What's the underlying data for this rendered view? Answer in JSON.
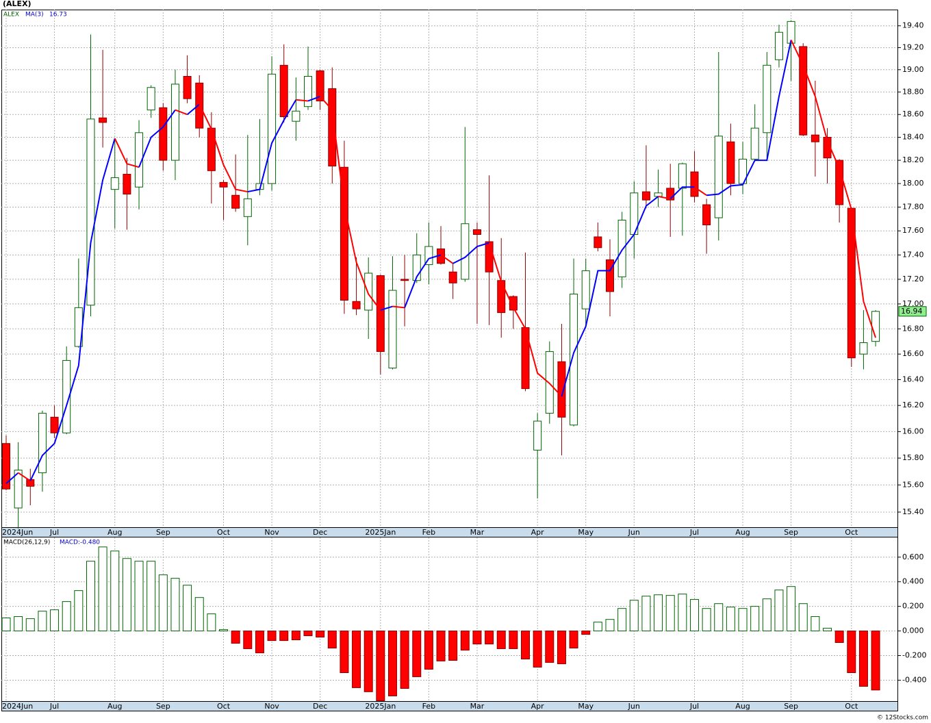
{
  "title": "(ALEX)",
  "chart_data": [
    {
      "type": "candlestick",
      "symbol": "ALEX",
      "categories": [
        "2024Jun",
        null,
        null,
        null,
        "Jul",
        null,
        null,
        null,
        null,
        "Aug",
        null,
        null,
        null,
        "Sep",
        null,
        null,
        null,
        null,
        "Oct",
        null,
        null,
        null,
        "Nov",
        null,
        null,
        null,
        "Dec",
        null,
        null,
        null,
        null,
        "2025Jan",
        null,
        null,
        null,
        "Feb",
        null,
        null,
        null,
        "Mar",
        null,
        null,
        null,
        null,
        "Apr",
        null,
        null,
        null,
        "May",
        null,
        null,
        null,
        "Jun",
        null,
        null,
        null,
        null,
        "Jul",
        null,
        null,
        null,
        "Aug",
        null,
        null,
        null,
        "Sep",
        null,
        null,
        null,
        null,
        "Oct",
        null,
        null
      ],
      "open": [
        15.91,
        15.43,
        15.64,
        15.69,
        16.11,
        15.99,
        16.66,
        16.99,
        18.57,
        17.95,
        18.08,
        17.97,
        18.64,
        18.66,
        18.2,
        18.94,
        18.88,
        18.48,
        18.01,
        17.9,
        17.72,
        17.95,
        18.0,
        19.04,
        18.54,
        18.67,
        18.99,
        18.83,
        18.14,
        17.02,
        16.95,
        17.23,
        16.49,
        17.2,
        17.19,
        17.32,
        17.45,
        17.26,
        17.2,
        17.61,
        17.51,
        17.19,
        17.06,
        16.81,
        15.86,
        16.14,
        16.54,
        16.05,
        16.96,
        17.55,
        17.36,
        17.22,
        17.57,
        17.93,
        17.89,
        17.96,
        17.96,
        18.1,
        17.82,
        17.71,
        18.36,
        18.0,
        18.21,
        18.44,
        19.09,
        19.24,
        19.21,
        18.42,
        18.4,
        18.2,
        17.79,
        16.6,
        16.7
      ],
      "high": [
        15.97,
        15.92,
        15.72,
        16.16,
        16.2,
        16.66,
        17.37,
        19.32,
        19.18,
        18.39,
        18.22,
        18.55,
        18.86,
        18.7,
        19.0,
        19.13,
        18.95,
        18.62,
        18.03,
        18.25,
        18.42,
        18.56,
        19.12,
        19.23,
        18.93,
        19.21,
        19.0,
        19.02,
        18.37,
        17.38,
        17.38,
        17.24,
        17.39,
        17.4,
        17.58,
        17.67,
        17.64,
        17.33,
        18.49,
        17.67,
        18.07,
        17.54,
        17.07,
        17.42,
        16.14,
        16.7,
        16.84,
        17.37,
        17.37,
        17.67,
        17.53,
        17.76,
        18.02,
        18.33,
        18.12,
        18.17,
        18.18,
        18.28,
        17.87,
        19.16,
        18.52,
        18.36,
        18.69,
        19.16,
        19.41,
        19.45,
        19.24,
        18.9,
        18.48,
        18.21,
        17.8,
        16.95,
        16.95
      ],
      "low": [
        15.56,
        15.28,
        15.45,
        15.55,
        15.95,
        15.98,
        16.65,
        16.9,
        18.31,
        17.62,
        17.61,
        17.78,
        18.57,
        18.11,
        18.03,
        18.7,
        18.4,
        17.83,
        17.69,
        17.76,
        17.48,
        17.9,
        17.94,
        18.53,
        18.37,
        18.64,
        18.64,
        18.0,
        16.92,
        16.91,
        16.72,
        16.44,
        16.48,
        16.82,
        17.17,
        17.16,
        17.32,
        17.04,
        17.18,
        16.84,
        16.83,
        16.73,
        16.8,
        16.31,
        15.5,
        16.06,
        15.82,
        16.04,
        16.81,
        17.43,
        16.9,
        17.13,
        17.37,
        17.79,
        17.8,
        17.55,
        17.56,
        17.84,
        17.41,
        17.52,
        17.9,
        17.91,
        18.19,
        18.21,
        19.02,
        18.9,
        18.41,
        18.06,
        18.0,
        17.67,
        16.5,
        16.48,
        16.66
      ],
      "close": [
        15.57,
        15.71,
        15.59,
        16.14,
        15.99,
        16.55,
        16.97,
        18.56,
        18.53,
        18.05,
        17.91,
        18.44,
        18.84,
        18.2,
        18.87,
        18.74,
        18.48,
        18.11,
        17.97,
        17.79,
        17.87,
        18.0,
        18.96,
        18.58,
        18.63,
        18.94,
        18.72,
        18.15,
        17.03,
        16.96,
        17.25,
        16.62,
        17.11,
        17.19,
        17.4,
        17.47,
        17.33,
        17.17,
        17.66,
        17.57,
        17.26,
        16.93,
        16.95,
        16.33,
        16.08,
        16.62,
        16.11,
        17.08,
        17.27,
        17.46,
        17.1,
        17.69,
        17.92,
        17.86,
        17.92,
        17.86,
        18.17,
        17.89,
        17.65,
        18.41,
        18.0,
        18.21,
        18.48,
        19.04,
        19.34,
        19.44,
        18.42,
        18.36,
        18.22,
        17.82,
        16.57,
        16.69,
        16.94
      ],
      "up_color": "#006400",
      "down_color": "#ff0000",
      "series": [
        {
          "name": "MA(3)",
          "rising_color": "#0000ff",
          "falling_color": "#ff0000",
          "values": [
            15.61,
            15.69,
            15.63,
            15.82,
            15.91,
            16.2,
            16.51,
            17.5,
            18.03,
            18.39,
            18.17,
            18.14,
            18.4,
            18.49,
            18.64,
            18.6,
            18.69,
            18.47,
            18.16,
            17.95,
            17.93,
            17.95,
            18.35,
            18.55,
            18.73,
            18.72,
            18.76,
            18.64,
            17.81,
            17.34,
            17.08,
            16.95,
            16.98,
            16.97,
            17.22,
            17.37,
            17.4,
            17.33,
            17.38,
            17.47,
            17.5,
            17.18,
            16.97,
            16.8,
            16.45,
            16.37,
            16.27,
            16.61,
            16.82,
            17.27,
            17.27,
            17.44,
            17.57,
            17.81,
            17.89,
            17.87,
            17.97,
            17.97,
            17.9,
            17.91,
            17.98,
            17.99,
            18.2,
            18.2,
            18.76,
            19.27,
            19.04,
            18.76,
            18.37,
            18.13,
            17.78,
            17.02,
            16.73
          ]
        }
      ],
      "ylim": [
        15.29,
        19.55
      ],
      "log_scale": true,
      "grid": true,
      "yticks": [
        {
          "value": 15.4,
          "label": "15.40"
        },
        {
          "value": 15.6,
          "label": "15.60"
        },
        {
          "value": 15.8,
          "label": "15.80"
        },
        {
          "value": 16,
          "label": "16.00"
        },
        {
          "value": 16.2,
          "label": "16.20"
        },
        {
          "value": 16.4,
          "label": "16.40"
        },
        {
          "value": 16.6,
          "label": "16.60"
        },
        {
          "value": 16.8,
          "label": "16.80"
        },
        {
          "value": 17,
          "label": "17.00"
        },
        {
          "value": 17.2,
          "label": "17.20"
        },
        {
          "value": 17.4,
          "label": "17.40"
        },
        {
          "value": 17.6,
          "label": "17.60"
        },
        {
          "value": 17.8,
          "label": "17.80"
        },
        {
          "value": 18,
          "label": "18.00"
        },
        {
          "value": 18.2,
          "label": "18.20"
        },
        {
          "value": 18.4,
          "label": "18.40"
        },
        {
          "value": 18.6,
          "label": "18.60"
        },
        {
          "value": 18.8,
          "label": "18.80"
        },
        {
          "value": 19,
          "label": "19.00"
        },
        {
          "value": 19.2,
          "label": "19.20"
        },
        {
          "value": 19.4,
          "label": "19.40"
        }
      ]
    },
    {
      "type": "bar",
      "title": "MACD(26,12,9)",
      "subtitle": "MACD:-0.480",
      "categories": [
        "2024Jun",
        null,
        null,
        null,
        "Jul",
        null,
        null,
        null,
        null,
        "Aug",
        null,
        null,
        null,
        "Sep",
        null,
        null,
        null,
        null,
        "Oct",
        null,
        null,
        null,
        "Nov",
        null,
        null,
        null,
        "Dec",
        null,
        null,
        null,
        null,
        "2025Jan",
        null,
        null,
        null,
        "Feb",
        null,
        null,
        null,
        "Mar",
        null,
        null,
        null,
        null,
        "Apr",
        null,
        null,
        null,
        "May",
        null,
        null,
        null,
        "Jun",
        null,
        null,
        null,
        null,
        "Jul",
        null,
        null,
        null,
        "Aug",
        null,
        null,
        null,
        "Sep",
        null,
        null,
        null,
        null,
        "Oct",
        null,
        null
      ],
      "values": [
        0.106,
        0.117,
        0.1,
        0.161,
        0.172,
        0.239,
        0.328,
        0.567,
        0.683,
        0.65,
        0.589,
        0.567,
        0.567,
        0.456,
        0.428,
        0.372,
        0.272,
        0.139,
        0.011,
        -0.1,
        -0.144,
        -0.178,
        -0.078,
        -0.078,
        -0.072,
        -0.039,
        -0.05,
        -0.139,
        -0.339,
        -0.461,
        -0.494,
        -0.567,
        -0.528,
        -0.467,
        -0.372,
        -0.311,
        -0.244,
        -0.239,
        -0.156,
        -0.106,
        -0.106,
        -0.144,
        -0.144,
        -0.228,
        -0.294,
        -0.256,
        -0.267,
        -0.139,
        -0.028,
        0.072,
        0.094,
        0.183,
        0.25,
        0.283,
        0.294,
        0.289,
        0.3,
        0.256,
        0.183,
        0.222,
        0.194,
        0.183,
        0.2,
        0.261,
        0.333,
        0.361,
        0.222,
        0.117,
        0.022,
        -0.094,
        -0.339,
        -0.45,
        -0.48
      ],
      "positive_color": "#006400",
      "negative_color": "#ff0000",
      "ylim": [
        -0.57,
        0.76
      ],
      "grid": true,
      "yticks": [
        {
          "value": -0.4,
          "label": "-0.400"
        },
        {
          "value": -0.2,
          "label": "-0.200"
        },
        {
          "value": 0,
          "label": "0.000"
        },
        {
          "value": 0.2,
          "label": "0.200"
        },
        {
          "value": 0.4,
          "label": "0.400"
        },
        {
          "value": 0.6,
          "label": "0.600"
        }
      ]
    }
  ],
  "footer": "© 12Stocks.com"
}
